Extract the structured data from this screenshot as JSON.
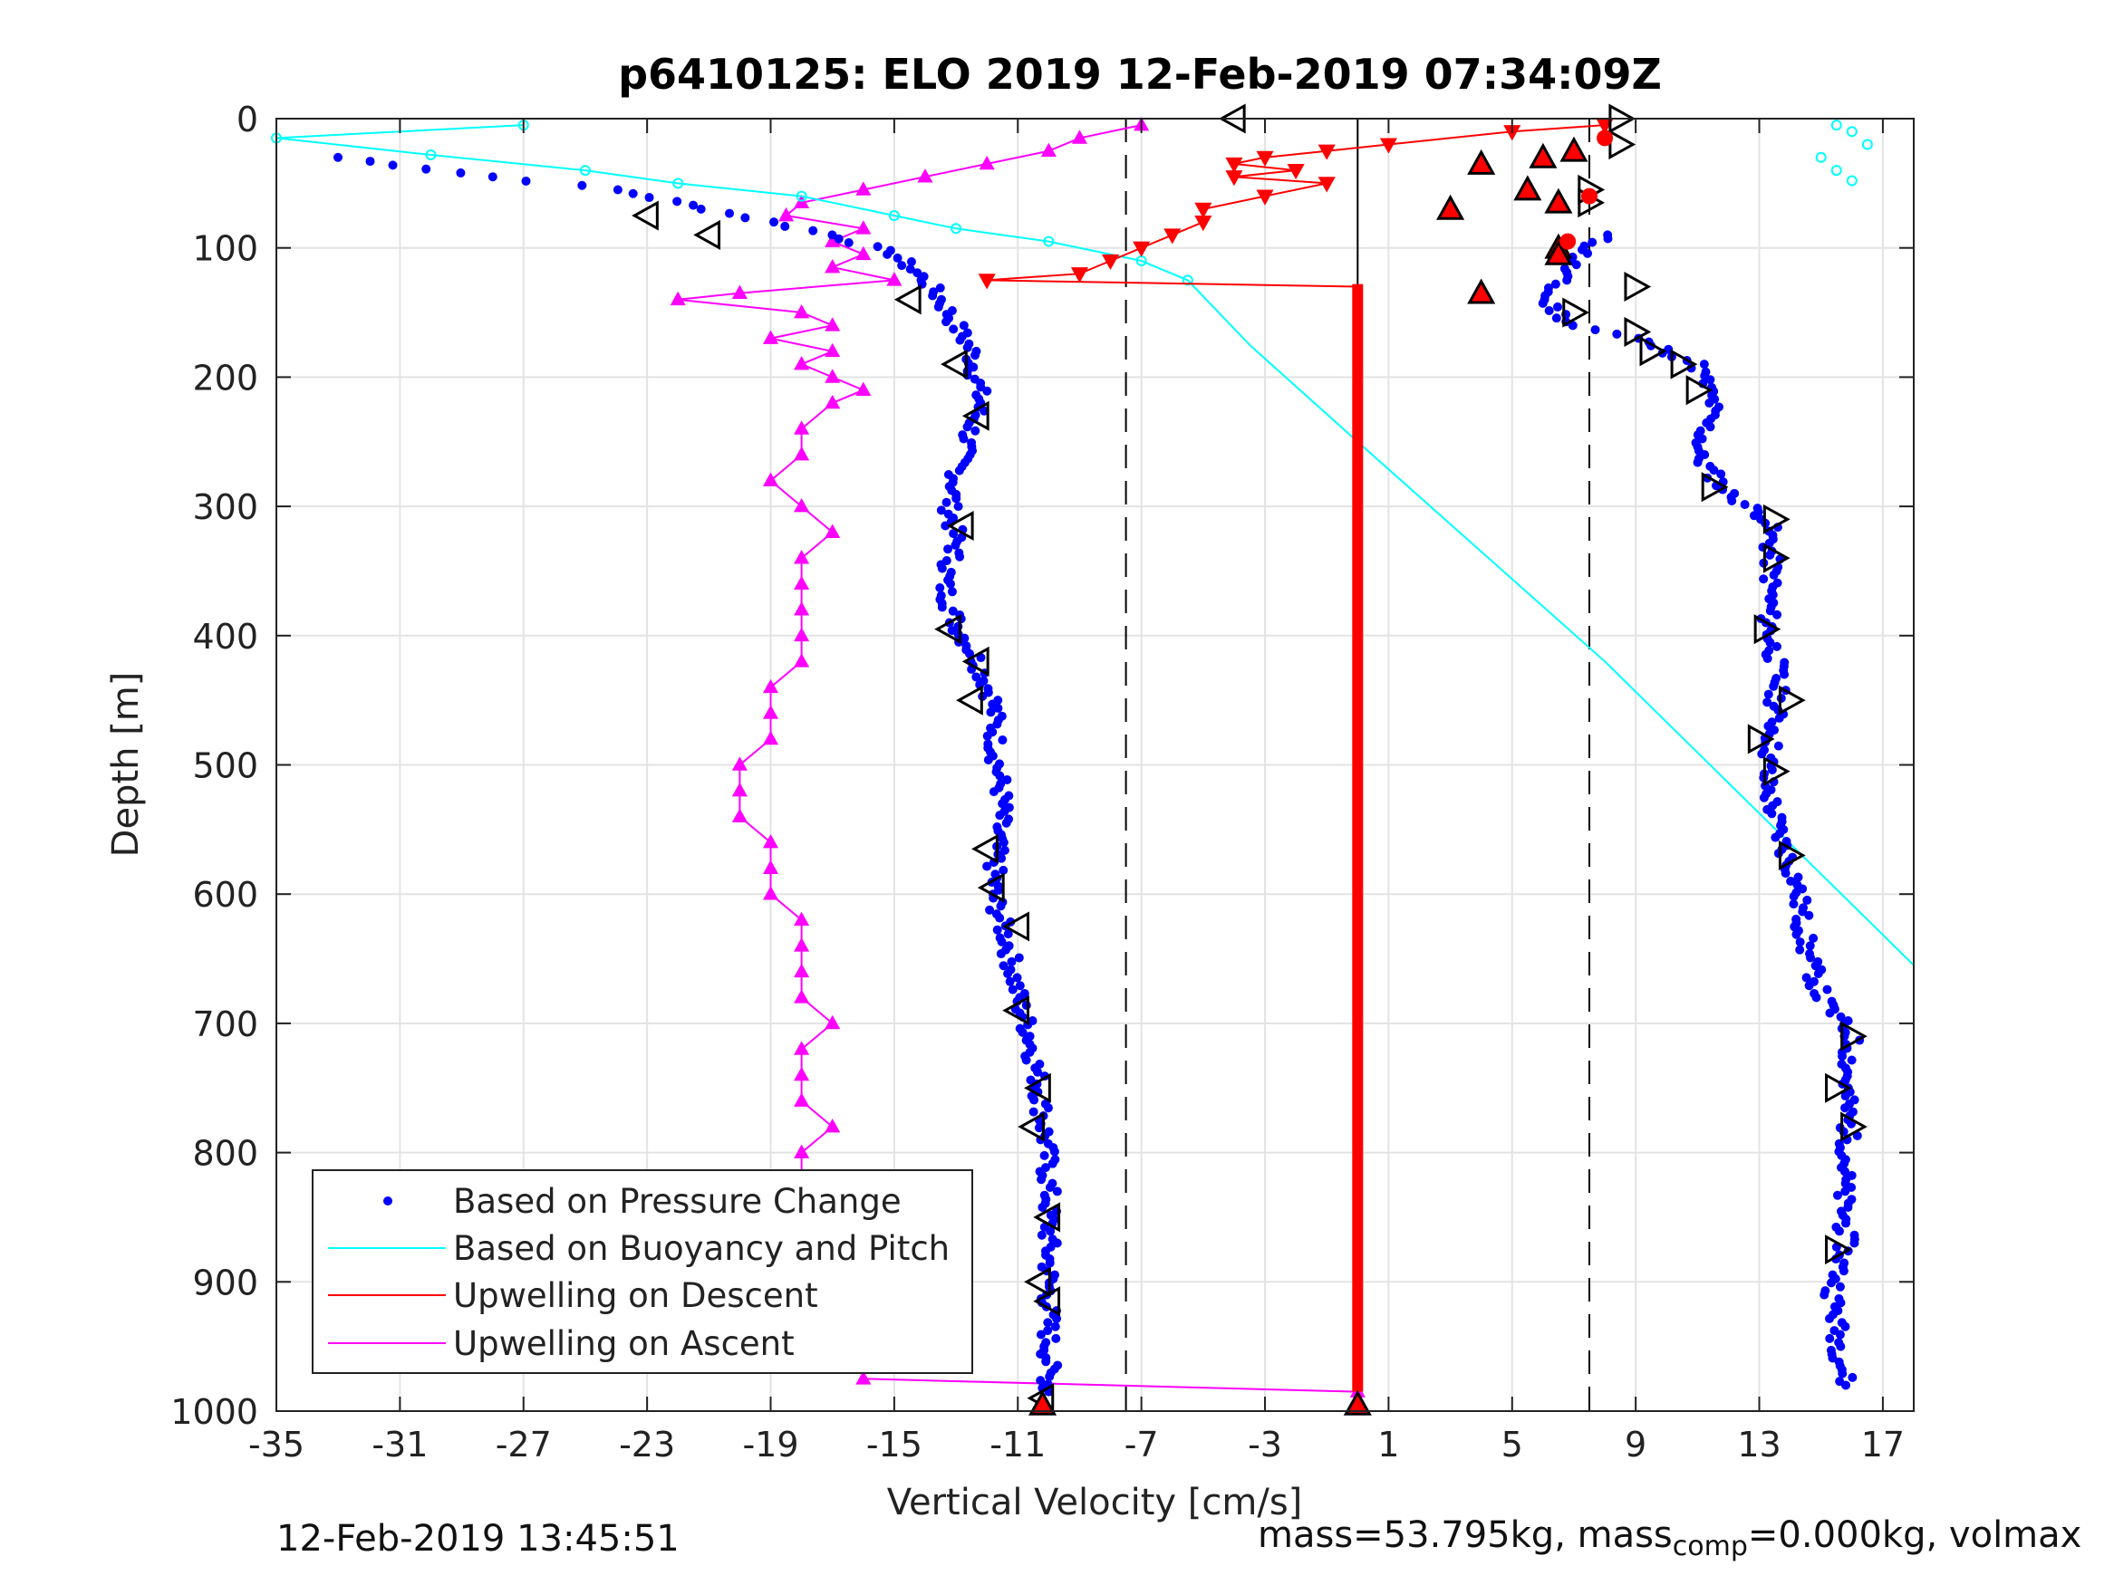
{
  "chart_data": {
    "type": "scatter",
    "title": "p6410125: ELO 2019 12-Feb-2019 07:34:09Z",
    "xlabel": "Vertical Velocity [cm/s]",
    "ylabel": "Depth [m]",
    "xlim": [
      -35,
      18
    ],
    "ylim": [
      0,
      1000
    ],
    "y_reversed": true,
    "grid": true,
    "xticks": [
      -35,
      -31,
      -27,
      -23,
      -19,
      -15,
      -11,
      -7,
      -3,
      1,
      5,
      9,
      13,
      17
    ],
    "xtick_labels": [
      "-35",
      "-31",
      "-27",
      "-23",
      "-19",
      "-15",
      "-11",
      "-7",
      "-3",
      "1",
      "5",
      "9",
      "13",
      "17"
    ],
    "yticks": [
      0,
      100,
      200,
      300,
      400,
      500,
      600,
      700,
      800,
      900,
      1000
    ],
    "ytick_labels": [
      "0",
      "100",
      "200",
      "300",
      "400",
      "500",
      "600",
      "700",
      "800",
      "900",
      "1000"
    ],
    "legend": {
      "placement": "bottom-left",
      "entries": [
        "Based on Pressure Change",
        "Based on Buoyancy and Pitch",
        "Upwelling on Descent",
        "Upwelling on Ascent"
      ]
    },
    "reference_lines": [
      {
        "x": -7.5,
        "style": "dashed",
        "color": "#000000"
      },
      {
        "x": 7.5,
        "style": "dashed",
        "color": "#000000"
      },
      {
        "x": 0,
        "style": "solid",
        "color": "#000000"
      }
    ],
    "series": [
      {
        "name": "Based on Pressure Change",
        "marker": "dot",
        "color": "#0000ff",
        "descent": [
          [
            -33,
            30
          ],
          [
            -28,
            45
          ],
          [
            -24,
            55
          ],
          [
            -21,
            70
          ],
          [
            -19,
            80
          ],
          [
            -17,
            90
          ],
          [
            -15,
            105
          ],
          [
            -14,
            125
          ],
          [
            -13.5,
            140
          ],
          [
            -13,
            160
          ],
          [
            -12.5,
            180
          ],
          [
            -12.2,
            220
          ],
          [
            -12.8,
            260
          ],
          [
            -13.2,
            300
          ],
          [
            -13,
            330
          ],
          [
            -13.4,
            360
          ],
          [
            -13,
            390
          ],
          [
            -12.3,
            420
          ],
          [
            -11.8,
            450
          ],
          [
            -11.7,
            490
          ],
          [
            -11.5,
            530
          ],
          [
            -11.7,
            560
          ],
          [
            -11.8,
            600
          ],
          [
            -11.3,
            640
          ],
          [
            -11,
            680
          ],
          [
            -10.6,
            710
          ],
          [
            -10.3,
            750
          ],
          [
            -10.1,
            790
          ],
          [
            -10,
            830
          ],
          [
            -10,
            870
          ],
          [
            -10,
            910
          ],
          [
            -10,
            950
          ],
          [
            -10,
            985
          ]
        ],
        "ascent": [
          [
            8,
            90
          ],
          [
            7,
            110
          ],
          [
            6,
            140
          ],
          [
            7,
            160
          ],
          [
            9,
            170
          ],
          [
            11,
            190
          ],
          [
            11.5,
            220
          ],
          [
            11,
            260
          ],
          [
            12,
            290
          ],
          [
            13.3,
            310
          ],
          [
            13.4,
            350
          ],
          [
            13.3,
            390
          ],
          [
            13.6,
            430
          ],
          [
            13.5,
            470
          ],
          [
            13.2,
            510
          ],
          [
            13.6,
            550
          ],
          [
            14.2,
            590
          ],
          [
            14.5,
            640
          ],
          [
            15,
            680
          ],
          [
            16,
            710
          ],
          [
            15.8,
            750
          ],
          [
            15.9,
            790
          ],
          [
            15.7,
            830
          ],
          [
            15.8,
            870
          ],
          [
            15.4,
            910
          ],
          [
            15.6,
            950
          ],
          [
            15.8,
            980
          ]
        ],
        "values": []
      },
      {
        "name": "Based on Buoyancy and Pitch",
        "marker": "circle-line",
        "color": "#00ffff",
        "points": [
          [
            -27,
            5
          ],
          [
            -35,
            15
          ],
          [
            -30,
            28
          ],
          [
            -25,
            40
          ],
          [
            -22,
            50
          ],
          [
            -18,
            60
          ],
          [
            -15,
            75
          ],
          [
            -13,
            85
          ],
          [
            -10,
            95
          ],
          [
            -7,
            110
          ],
          [
            -5.5,
            125
          ],
          [
            -3.5,
            175
          ],
          [
            0,
            250
          ],
          [
            8,
            420
          ],
          [
            18,
            655
          ]
        ],
        "surface_points": [
          [
            15.5,
            5
          ],
          [
            16,
            10
          ],
          [
            16.5,
            20
          ],
          [
            15,
            30
          ],
          [
            15.5,
            40
          ],
          [
            16,
            48
          ]
        ]
      },
      {
        "name": "Upwelling on Descent",
        "marker": "triangle-down",
        "color": "#ff0000",
        "points": [
          [
            8,
            5
          ],
          [
            5,
            10
          ],
          [
            1,
            20
          ],
          [
            -1,
            25
          ],
          [
            -3,
            30
          ],
          [
            -4,
            35
          ],
          [
            -2,
            40
          ],
          [
            -4,
            45
          ],
          [
            -1,
            50
          ],
          [
            -3,
            60
          ],
          [
            -5,
            70
          ],
          [
            -5,
            80
          ],
          [
            -6,
            90
          ],
          [
            -7,
            100
          ],
          [
            -8,
            110
          ],
          [
            -9,
            120
          ],
          [
            -12,
            125
          ],
          [
            0,
            130
          ],
          [
            0,
            985
          ]
        ]
      },
      {
        "name": "Upwelling on Ascent",
        "marker": "triangle-up",
        "color": "#ff00ff",
        "points": [
          [
            -7,
            5
          ],
          [
            -9,
            15
          ],
          [
            -10,
            25
          ],
          [
            -12,
            35
          ],
          [
            -14,
            45
          ],
          [
            -16,
            55
          ],
          [
            -18,
            65
          ],
          [
            -18.5,
            75
          ],
          [
            -16,
            85
          ],
          [
            -17,
            95
          ],
          [
            -16,
            105
          ],
          [
            -17,
            115
          ],
          [
            -15,
            125
          ],
          [
            -20,
            135
          ],
          [
            -22,
            140
          ],
          [
            -18,
            150
          ],
          [
            -17,
            160
          ],
          [
            -19,
            170
          ],
          [
            -17,
            180
          ],
          [
            -18,
            190
          ],
          [
            -17,
            200
          ],
          [
            -16,
            210
          ],
          [
            -17,
            220
          ],
          [
            -18,
            240
          ],
          [
            -18,
            260
          ],
          [
            -19,
            280
          ],
          [
            -18,
            300
          ],
          [
            -17,
            320
          ],
          [
            -18,
            340
          ],
          [
            -18,
            360
          ],
          [
            -18,
            380
          ],
          [
            -18,
            400
          ],
          [
            -18,
            420
          ],
          [
            -19,
            440
          ],
          [
            -19,
            460
          ],
          [
            -19,
            480
          ],
          [
            -20,
            500
          ],
          [
            -20,
            520
          ],
          [
            -20,
            540
          ],
          [
            -19,
            560
          ],
          [
            -19,
            580
          ],
          [
            -19,
            600
          ],
          [
            -18,
            620
          ],
          [
            -18,
            640
          ],
          [
            -18,
            660
          ],
          [
            -18,
            680
          ],
          [
            -17,
            700
          ],
          [
            -18,
            720
          ],
          [
            -18,
            740
          ],
          [
            -18,
            760
          ],
          [
            -17,
            780
          ],
          [
            -18,
            800
          ],
          [
            -18,
            820
          ],
          [
            -18,
            840
          ],
          [
            -18,
            860
          ],
          [
            -17,
            880
          ],
          [
            -17,
            900
          ],
          [
            -17,
            920
          ],
          [
            -17,
            940
          ],
          [
            -16,
            960
          ],
          [
            -16,
            975
          ],
          [
            0,
            985
          ]
        ]
      }
    ],
    "markers": {
      "descent_triangles": [
        [
          -4,
          0
        ],
        [
          -21,
          90
        ],
        [
          -23,
          75
        ],
        [
          -14.5,
          140
        ],
        [
          -13,
          190
        ],
        [
          -12.3,
          230
        ],
        [
          -12.8,
          315
        ],
        [
          -13.2,
          395
        ],
        [
          -12.3,
          420
        ],
        [
          -12.5,
          450
        ],
        [
          -12,
          565
        ],
        [
          -11.8,
          595
        ],
        [
          -11,
          625
        ],
        [
          -11,
          690
        ],
        [
          -10.3,
          750
        ],
        [
          -10.5,
          780
        ],
        [
          -10,
          850
        ],
        [
          -10.3,
          900
        ],
        [
          -10,
          915
        ],
        [
          -10.2,
          990
        ]
      ],
      "ascent_triangles": [
        [
          8.5,
          0
        ],
        [
          8.5,
          20
        ],
        [
          7.5,
          55
        ],
        [
          7.5,
          65
        ],
        [
          9,
          130
        ],
        [
          7,
          150
        ],
        [
          9,
          165
        ],
        [
          9.5,
          180
        ],
        [
          10.5,
          190
        ],
        [
          11,
          210
        ],
        [
          11.5,
          285
        ],
        [
          13.5,
          310
        ],
        [
          13.5,
          340
        ],
        [
          13.2,
          395
        ],
        [
          14,
          450
        ],
        [
          13,
          480
        ],
        [
          13.5,
          505
        ],
        [
          14,
          570
        ],
        [
          16,
          710
        ],
        [
          15.5,
          750
        ],
        [
          16,
          780
        ],
        [
          15.5,
          875
        ]
      ],
      "red_up_triangles": [
        [
          4,
          35
        ],
        [
          6,
          30
        ],
        [
          7,
          25
        ],
        [
          5.5,
          55
        ],
        [
          3,
          70
        ],
        [
          6.5,
          65
        ],
        [
          6.5,
          100
        ],
        [
          6.5,
          105
        ],
        [
          4,
          135
        ],
        [
          0,
          995
        ],
        [
          -10.2,
          995
        ]
      ],
      "red_circles": [
        [
          8,
          15
        ],
        [
          7.5,
          60
        ],
        [
          6.8,
          95
        ]
      ]
    },
    "footer_left": "12-Feb-2019 13:45:51",
    "footer_right": {
      "prefix": "mass=53.795kg, mass",
      "sub": "comp",
      "suffix": "=0.000kg, volmax"
    }
  }
}
